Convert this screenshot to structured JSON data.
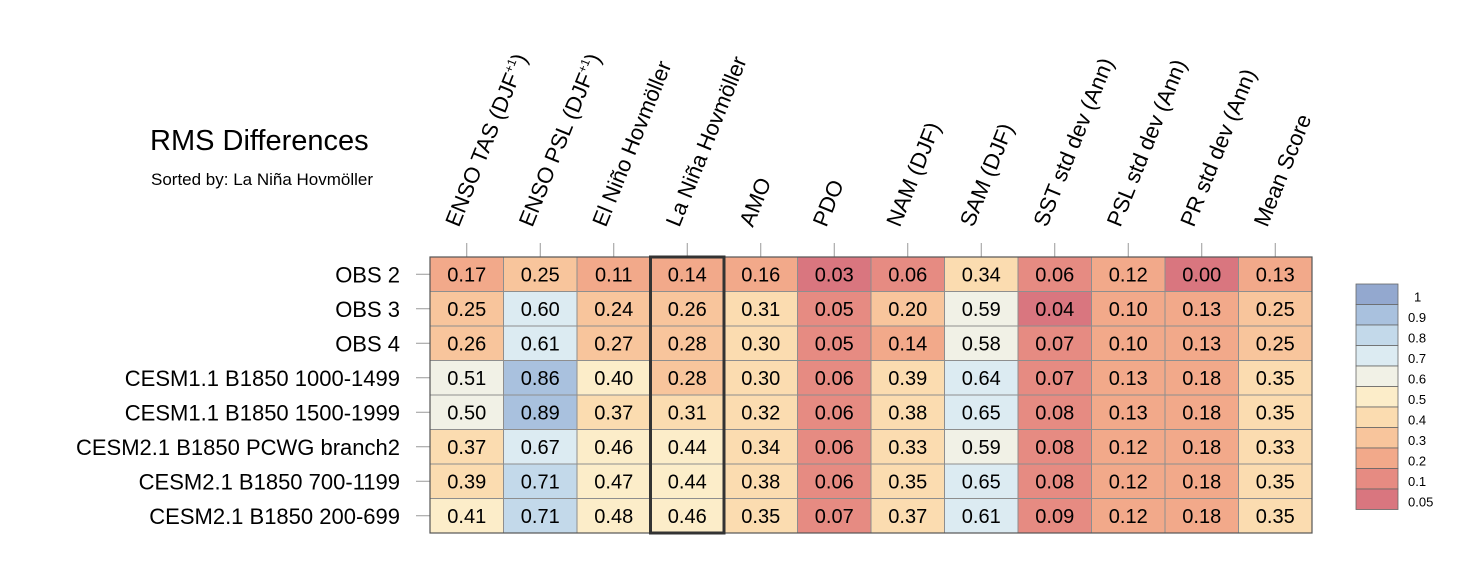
{
  "chart_data": {
    "type": "heatmap",
    "title": "RMS Differences",
    "subtitle": "Sorted by: La Niña Hovmöller",
    "columns": [
      "ENSO TAS (DJF+1)",
      "ENSO PSL (DJF+1)",
      "El Niño Hovmöller",
      "La Niña Hovmöller",
      "AMO",
      "PDO",
      "NAM (DJF)",
      "SAM (DJF)",
      "SST std dev (Ann)",
      "PSL std dev (Ann)",
      "PR std dev (Ann)",
      "Mean Score"
    ],
    "column_labels": [
      {
        "text": "ENSO TAS (DJF",
        "sup": "+1",
        "tail": ")"
      },
      {
        "text": "ENSO PSL (DJF",
        "sup": "+1",
        "tail": ")"
      },
      {
        "text": "El Niño Hovmöller",
        "sup": "",
        "tail": ""
      },
      {
        "text": "La Niña Hovmöller",
        "sup": "",
        "tail": ""
      },
      {
        "text": "AMO",
        "sup": "",
        "tail": ""
      },
      {
        "text": "PDO",
        "sup": "",
        "tail": ""
      },
      {
        "text": "NAM (DJF)",
        "sup": "",
        "tail": ""
      },
      {
        "text": "SAM (DJF)",
        "sup": "",
        "tail": ""
      },
      {
        "text": "SST std dev (Ann)",
        "sup": "",
        "tail": ""
      },
      {
        "text": "PSL std dev (Ann)",
        "sup": "",
        "tail": ""
      },
      {
        "text": "PR std dev (Ann)",
        "sup": "",
        "tail": ""
      },
      {
        "text": "Mean Score",
        "sup": "",
        "tail": ""
      }
    ],
    "rows": [
      "OBS 2",
      "OBS 3",
      "OBS 4",
      "CESM1.1 B1850 1000-1499",
      "CESM1.1 B1850 1500-1999",
      "CESM2.1 B1850 PCWG branch2",
      "CESM2.1 B1850 700-1199",
      "CESM2.1 B1850 200-699"
    ],
    "values": [
      [
        "0.17",
        "0.25",
        "0.11",
        "0.14",
        "0.16",
        "0.03",
        "0.06",
        "0.34",
        "0.06",
        "0.12",
        "0.00",
        "0.13"
      ],
      [
        "0.25",
        "0.60",
        "0.24",
        "0.26",
        "0.31",
        "0.05",
        "0.20",
        "0.59",
        "0.04",
        "0.10",
        "0.13",
        "0.25"
      ],
      [
        "0.26",
        "0.61",
        "0.27",
        "0.28",
        "0.30",
        "0.05",
        "0.14",
        "0.58",
        "0.07",
        "0.10",
        "0.13",
        "0.25"
      ],
      [
        "0.51",
        "0.86",
        "0.40",
        "0.28",
        "0.30",
        "0.06",
        "0.39",
        "0.64",
        "0.07",
        "0.13",
        "0.18",
        "0.35"
      ],
      [
        "0.50",
        "0.89",
        "0.37",
        "0.31",
        "0.32",
        "0.06",
        "0.38",
        "0.65",
        "0.08",
        "0.13",
        "0.18",
        "0.35"
      ],
      [
        "0.37",
        "0.67",
        "0.46",
        "0.44",
        "0.34",
        "0.06",
        "0.33",
        "0.59",
        "0.08",
        "0.12",
        "0.18",
        "0.33"
      ],
      [
        "0.39",
        "0.71",
        "0.47",
        "0.44",
        "0.38",
        "0.06",
        "0.35",
        "0.65",
        "0.08",
        "0.12",
        "0.18",
        "0.35"
      ],
      [
        "0.41",
        "0.71",
        "0.48",
        "0.46",
        "0.35",
        "0.07",
        "0.37",
        "0.61",
        "0.09",
        "0.12",
        "0.18",
        "0.35"
      ]
    ],
    "highlighted_column": "La Niña Hovmöller",
    "colorbar": {
      "labels": [
        "1",
        "0.9",
        "0.8",
        "0.7",
        "0.6",
        "0.5",
        "0.4",
        "0.3",
        "0.2",
        "0.1",
        "0.05"
      ],
      "colors": [
        "#93a8cf",
        "#a9c1de",
        "#c3d9ea",
        "#dcebf2",
        "#f1f1e6",
        "#fcedc9",
        "#fbdcb0",
        "#f8c59c",
        "#f2a98a",
        "#e68b82",
        "#d9767f"
      ]
    }
  }
}
